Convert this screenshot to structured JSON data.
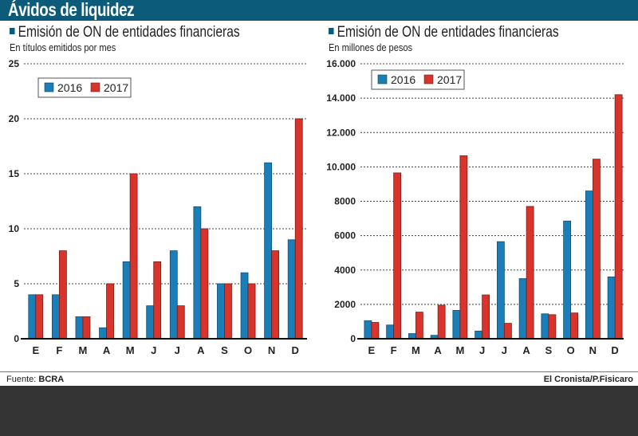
{
  "header": {
    "title": "Ávidos de liquidez"
  },
  "colors": {
    "header_bg": "#0d5b7a",
    "series_2016": "#1a7fb8",
    "series_2017": "#d9342b"
  },
  "footer": {
    "source_label": "Fuente:",
    "source_value": "BCRA",
    "credit": "El Cronista/P.Fisicaro"
  },
  "chart_data": [
    {
      "type": "bar",
      "title": "Emisión de ON de entidades financieras",
      "subtitle": "En títulos emitidos por mes",
      "xlabel": "",
      "ylabel": "",
      "categories": [
        "E",
        "F",
        "M",
        "A",
        "M",
        "J",
        "J",
        "A",
        "S",
        "O",
        "N",
        "D"
      ],
      "series": [
        {
          "name": "2016",
          "values": [
            4,
            4,
            2,
            1,
            7,
            3,
            8,
            12,
            5,
            6,
            16,
            9
          ]
        },
        {
          "name": "2017",
          "values": [
            4,
            8,
            2,
            5,
            15,
            7,
            3,
            10,
            5,
            5,
            8,
            20
          ]
        }
      ],
      "ylim": [
        0,
        25
      ],
      "yticks": [
        0,
        5,
        10,
        15,
        20,
        25
      ],
      "ytick_labels": [
        "0",
        "5",
        "10",
        "15",
        "20",
        "25"
      ],
      "grid": true,
      "legend": "top-left"
    },
    {
      "type": "bar",
      "title": "Emisión de ON de entidades financieras",
      "subtitle": "En millones de pesos",
      "xlabel": "",
      "ylabel": "",
      "categories": [
        "E",
        "F",
        "M",
        "A",
        "M",
        "J",
        "J",
        "A",
        "S",
        "O",
        "N",
        "D"
      ],
      "series": [
        {
          "name": "2016",
          "values": [
            1050,
            800,
            300,
            200,
            1650,
            450,
            5650,
            3500,
            1450,
            6850,
            8600,
            3600
          ]
        },
        {
          "name": "2017",
          "values": [
            950,
            9650,
            1550,
            1950,
            10650,
            2550,
            900,
            7700,
            1400,
            1500,
            10450,
            14200
          ]
        }
      ],
      "ylim": [
        0,
        16000
      ],
      "yticks": [
        0,
        2000,
        4000,
        6000,
        8000,
        10000,
        12000,
        14000,
        16000
      ],
      "ytick_labels": [
        "0",
        "2000",
        "4000",
        "6000",
        "8000",
        "10.000",
        "12.000",
        "14.000",
        "16.000"
      ],
      "grid": true,
      "legend": "top-left"
    }
  ]
}
